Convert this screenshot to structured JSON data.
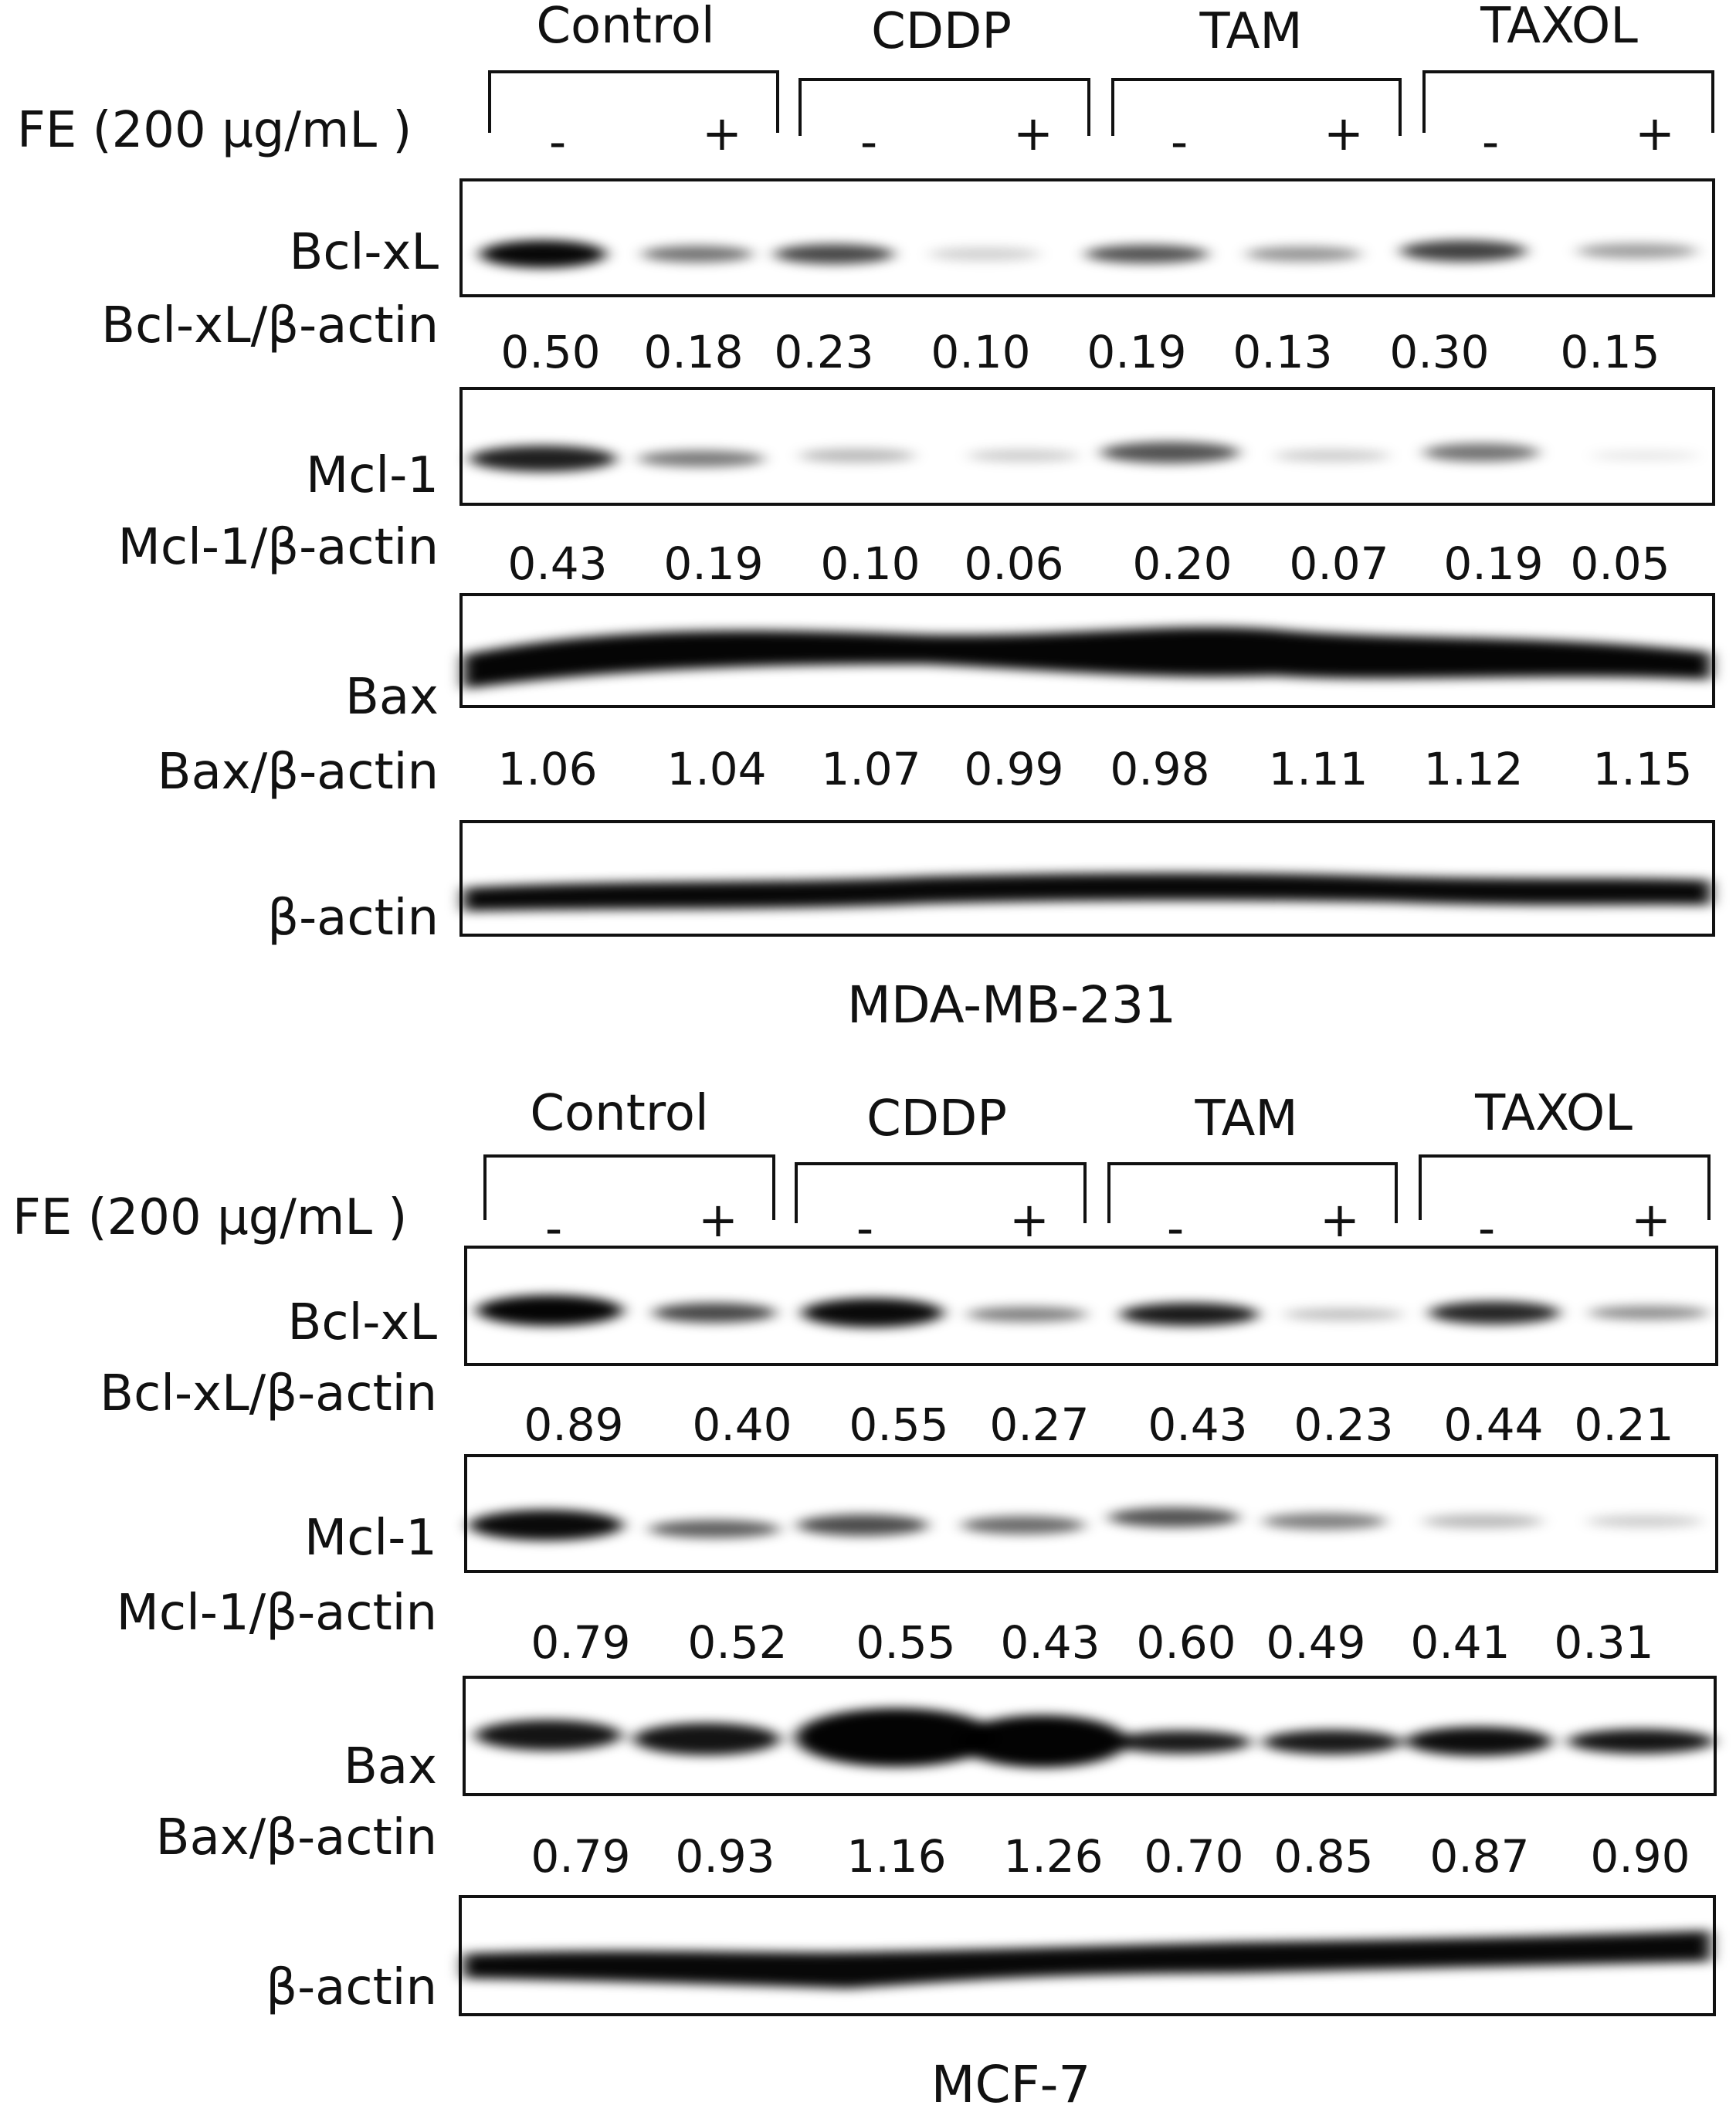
{
  "panels": [
    {
      "cell_line": "MDA-MB-231",
      "treatment_label": "FE (200 μg/mL )",
      "groups": [
        "Control",
        "CDDP",
        "TAM",
        "TAXOL"
      ],
      "signs": [
        "-",
        "+",
        "-",
        "+",
        "-",
        "+",
        "-",
        "+"
      ],
      "blots": [
        {
          "protein": "Bcl-xL",
          "ratio_label": "Bcl-xL/β-actin",
          "ratios": [
            "0.50",
            "0.18",
            "0.23",
            "0.10",
            "0.19",
            "0.13",
            "0.30",
            "0.15"
          ]
        },
        {
          "protein": "Mcl-1",
          "ratio_label": "Mcl-1/β-actin",
          "ratios": [
            "0.43",
            "0.19",
            "0.10",
            "0.06",
            "0.20",
            "0.07",
            "0.19",
            "0.05"
          ]
        },
        {
          "protein": "Bax",
          "ratio_label": "Bax/β-actin",
          "ratios": [
            "1.06",
            "1.04",
            "1.07",
            "0.99",
            "0.98",
            "1.11",
            "1.12",
            "1.15"
          ]
        },
        {
          "protein": "β-actin",
          "ratio_label": "",
          "ratios": []
        }
      ]
    },
    {
      "cell_line": "MCF-7",
      "treatment_label": "FE (200 μg/mL )",
      "groups": [
        "Control",
        "CDDP",
        "TAM",
        "TAXOL"
      ],
      "signs": [
        "-",
        "+",
        "-",
        "+",
        "-",
        "+",
        "-",
        "+"
      ],
      "blots": [
        {
          "protein": "Bcl-xL",
          "ratio_label": "Bcl-xL/β-actin",
          "ratios": [
            "0.89",
            "0.40",
            "0.55",
            "0.27",
            "0.43",
            "0.23",
            "0.44",
            "0.21"
          ]
        },
        {
          "protein": "Mcl-1",
          "ratio_label": "Mcl-1/β-actin",
          "ratios": [
            "0.79",
            "0.52",
            "0.55",
            "0.43",
            "0.60",
            "0.49",
            "0.41",
            "0.31"
          ]
        },
        {
          "protein": "Bax",
          "ratio_label": "Bax/β-actin",
          "ratios": [
            "0.79",
            "0.93",
            "1.16",
            "1.26",
            "0.70",
            "0.85",
            "0.87",
            "0.90"
          ]
        },
        {
          "protein": "β-actin",
          "ratio_label": "",
          "ratios": []
        }
      ]
    }
  ],
  "colors": {
    "ink": "#111111",
    "band": "#000000",
    "membrane": "#ffffff"
  }
}
